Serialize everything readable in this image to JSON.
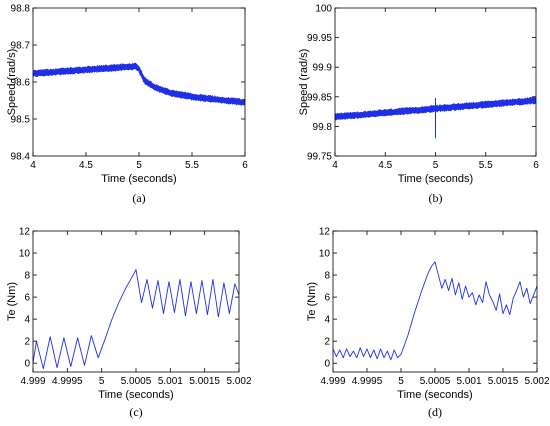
{
  "colors": {
    "trace": "#1f2fe6",
    "axes": "#000000",
    "background": "#ffffff"
  },
  "chart_data": [
    {
      "id": "a",
      "type": "line",
      "caption": "(a)",
      "xlabel": "Time (seconds)",
      "ylabel": "Speed (rad/s)",
      "xlim": [
        4,
        6
      ],
      "ylim": [
        98.4,
        98.8
      ],
      "xticks": [
        4,
        4.5,
        5,
        5.5,
        6
      ],
      "xticklabels": [
        "4",
        "4.5",
        "5",
        "5.5",
        "6"
      ],
      "yticks": [
        98.4,
        98.5,
        98.6,
        98.7,
        98.8
      ],
      "yticklabels": [
        "98.4",
        "98.5",
        "98.6",
        "98.7",
        "98.8"
      ],
      "grid": false,
      "trace_style": "thick-noisy",
      "series": [
        {
          "x": [
            4.0,
            4.5,
            4.9,
            4.97,
            5.0,
            5.05,
            5.15,
            5.3,
            5.5,
            5.75,
            6.0
          ],
          "y": [
            98.623,
            98.633,
            98.641,
            98.642,
            98.635,
            98.605,
            98.585,
            98.57,
            98.56,
            98.552,
            98.545
          ]
        }
      ]
    },
    {
      "id": "b",
      "type": "line",
      "caption": "(b)",
      "xlabel": "Time (seconds)",
      "ylabel": "Speed (rad/s)",
      "xlim": [
        4,
        6
      ],
      "ylim": [
        99.75,
        100
      ],
      "xticks": [
        4,
        4.5,
        5,
        5.5,
        6
      ],
      "xticklabels": [
        "4",
        "4.5",
        "5",
        "5.5",
        "6"
      ],
      "yticks": [
        99.75,
        99.8,
        99.85,
        99.9,
        99.95,
        100
      ],
      "yticklabels": [
        "99.75",
        "99.8",
        "99.85",
        "99.9",
        "99.95",
        "100"
      ],
      "grid": false,
      "trace_style": "thick-noisy",
      "series": [
        {
          "x": [
            4.0,
            4.5,
            5.0,
            5.5,
            6.0
          ],
          "y": [
            99.816,
            99.823,
            99.83,
            99.837,
            99.844
          ]
        }
      ],
      "spike": {
        "x": 5.0,
        "y_low": 99.78,
        "y_high": 99.848
      }
    },
    {
      "id": "c",
      "type": "line",
      "caption": "(c)",
      "xlabel": "Time (seconds)",
      "ylabel": "Te (Nm)",
      "xlim": [
        4.999,
        5.002
      ],
      "ylim": [
        -0.8,
        12
      ],
      "xticks": [
        4.999,
        4.9995,
        5,
        5.0005,
        5.001,
        5.0015,
        5.002
      ],
      "xticklabels": [
        "4.999",
        "4.9995",
        "5",
        "5.0005",
        "5.001",
        "5.0015",
        "5.002"
      ],
      "yticks": [
        0,
        2,
        4,
        6,
        8,
        10,
        12
      ],
      "yticklabels": [
        "0",
        "2",
        "4",
        "6",
        "8",
        "10",
        "12"
      ],
      "grid": false,
      "trace_style": "thin",
      "series": [
        {
          "x": [
            4.999,
            4.99905,
            4.99915,
            4.99925,
            4.99935,
            4.99945,
            4.99955,
            4.99965,
            4.99975,
            4.99985,
            4.99995,
            5.00005,
            5.00015,
            5.00025,
            5.00035,
            5.00045,
            5.0005,
            5.00058,
            5.00066,
            5.00074,
            5.00082,
            5.0009,
            5.00098,
            5.00106,
            5.00114,
            5.00122,
            5.0013,
            5.00138,
            5.00146,
            5.00154,
            5.00162,
            5.0017,
            5.00178,
            5.00186,
            5.00194,
            5.002
          ],
          "y": [
            0.0,
            2.0,
            -0.5,
            2.4,
            -0.4,
            2.3,
            -0.3,
            2.3,
            -0.2,
            2.5,
            0.5,
            2.2,
            4.0,
            5.5,
            6.8,
            7.9,
            8.5,
            5.5,
            7.6,
            5.0,
            7.5,
            4.5,
            7.4,
            4.6,
            7.6,
            4.3,
            7.4,
            4.5,
            7.5,
            4.4,
            7.6,
            4.2,
            7.3,
            4.5,
            7.2,
            6.2
          ]
        }
      ]
    },
    {
      "id": "d",
      "type": "line",
      "caption": "(d)",
      "xlabel": "Time (seconds)",
      "ylabel": "Te (Nm)",
      "xlim": [
        4.999,
        5.002
      ],
      "ylim": [
        -0.8,
        12
      ],
      "xticks": [
        4.999,
        4.9995,
        5,
        5.0005,
        5.001,
        5.0015,
        5.002
      ],
      "xticklabels": [
        "4.999",
        "4.9995",
        "5",
        "5.0005",
        "5.001",
        "5.0015",
        "5.002"
      ],
      "yticks": [
        0,
        2,
        4,
        6,
        8,
        10,
        12
      ],
      "yticklabels": [
        "0",
        "2",
        "4",
        "6",
        "8",
        "10",
        "12"
      ],
      "grid": false,
      "trace_style": "thin",
      "series": [
        {
          "x": [
            4.999,
            4.99905,
            4.9991,
            4.99915,
            4.9992,
            4.99925,
            4.9993,
            4.99935,
            4.9994,
            4.99945,
            4.9995,
            4.99955,
            4.9996,
            4.99965,
            4.9997,
            4.99975,
            4.9998,
            4.99985,
            4.9999,
            4.99995,
            5.0,
            5.0001,
            5.0002,
            5.0003,
            5.0004,
            5.00045,
            5.0005,
            5.00055,
            5.0006,
            5.00065,
            5.0007,
            5.00075,
            5.0008,
            5.00085,
            5.0009,
            5.00095,
            5.001,
            5.00105,
            5.0011,
            5.00115,
            5.0012,
            5.00125,
            5.0013,
            5.00135,
            5.0014,
            5.00145,
            5.0015,
            5.00155,
            5.0016,
            5.00165,
            5.0017,
            5.00175,
            5.0018,
            5.00185,
            5.0019,
            5.00195,
            5.002
          ],
          "y": [
            1.3,
            0.6,
            1.2,
            0.5,
            1.3,
            0.6,
            1.1,
            0.5,
            1.4,
            0.6,
            1.3,
            0.5,
            1.2,
            0.4,
            1.3,
            0.5,
            1.1,
            0.3,
            1.2,
            0.5,
            0.8,
            2.5,
            4.6,
            6.5,
            8.2,
            8.8,
            9.2,
            8.0,
            6.8,
            7.6,
            6.6,
            7.7,
            6.2,
            7.3,
            5.8,
            7.0,
            6.0,
            6.4,
            5.3,
            6.2,
            5.5,
            7.4,
            6.2,
            5.6,
            4.8,
            6.3,
            4.5,
            5.3,
            4.4,
            5.9,
            6.6,
            7.4,
            6.0,
            6.8,
            5.4,
            6.2,
            7.0
          ]
        }
      ]
    }
  ]
}
